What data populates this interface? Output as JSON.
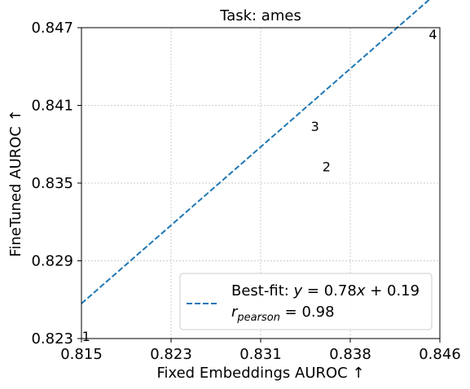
{
  "chart_data": {
    "type": "scatter",
    "title": "Task: ames",
    "xlabel": "Fixed Embeddings AUROC ↑",
    "ylabel": "FineTuned AUROC ↑",
    "xlim": [
      0.815,
      0.846
    ],
    "ylim": [
      0.823,
      0.847
    ],
    "xticks": [
      "0.815",
      "0.823",
      "0.831",
      "0.838",
      "0.846"
    ],
    "yticks": [
      "0.823",
      "0.829",
      "0.835",
      "0.841",
      "0.847"
    ],
    "grid": true,
    "legend_position": "bottom-right",
    "points": [
      {
        "label": "1",
        "x": 0.8154,
        "y": 0.8231
      },
      {
        "label": "2",
        "x": 0.8362,
        "y": 0.8362
      },
      {
        "label": "3",
        "x": 0.8352,
        "y": 0.8393
      },
      {
        "label": "4",
        "x": 0.8454,
        "y": 0.8464
      }
    ],
    "fit_line": {
      "slope": 0.78,
      "intercept": 0.19,
      "style": "dashed",
      "color": "#1f77b4"
    },
    "legend": {
      "line1": "Best-fit: y = 0.78x + 0.19",
      "line2": "r_pearson = 0.98"
    }
  }
}
